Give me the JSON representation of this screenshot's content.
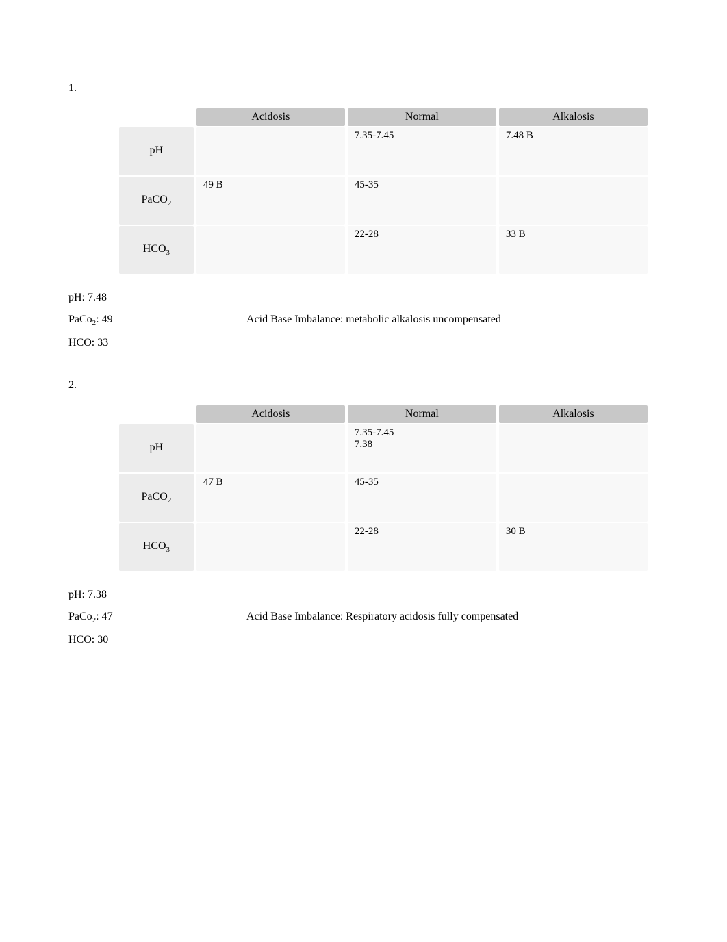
{
  "problem1": {
    "number": "1.",
    "table": {
      "col_headers": [
        "Acidosis",
        "Normal",
        "Alkalosis"
      ],
      "rows": [
        {
          "label": "pH",
          "sub": "",
          "cells": [
            "",
            "7.35-7.45",
            "7.48 B"
          ]
        },
        {
          "label": "PaCO",
          "sub": "2",
          "cells": [
            "49 B",
            "45-35",
            ""
          ]
        },
        {
          "label": "HCO",
          "sub": "3",
          "cells": [
            "",
            "22-28",
            "33 B"
          ]
        }
      ]
    },
    "values": {
      "ph": {
        "label": "pH: 7.48",
        "imbalance": ""
      },
      "paco2": {
        "label": "PaCo",
        "sub": "2",
        "after_sub": ": 49",
        "imbalance": "Acid Base Imbalance: metabolic alkalosis uncompensated"
      },
      "hco": {
        "label": "HCO: 33",
        "imbalance": ""
      }
    }
  },
  "problem2": {
    "number": "2.",
    "table": {
      "col_headers": [
        "Acidosis",
        "Normal",
        "Alkalosis"
      ],
      "rows": [
        {
          "label": "pH",
          "sub": "",
          "cells": [
            "",
            "7.35-7.45\n7.38",
            ""
          ]
        },
        {
          "label": "PaCO",
          "sub": "2",
          "cells": [
            "47 B",
            "45-35",
            ""
          ]
        },
        {
          "label": "HCO",
          "sub": "3",
          "cells": [
            "",
            "22-28",
            "30 B"
          ]
        }
      ]
    },
    "values": {
      "ph": {
        "label": "pH: 7.38",
        "imbalance": ""
      },
      "paco2": {
        "label": "PaCo",
        "sub": "2",
        "after_sub": ": 47",
        "imbalance": "Acid Base Imbalance: Respiratory acidosis fully compensated"
      },
      "hco": {
        "label": "HCO: 30",
        "imbalance": ""
      }
    }
  }
}
